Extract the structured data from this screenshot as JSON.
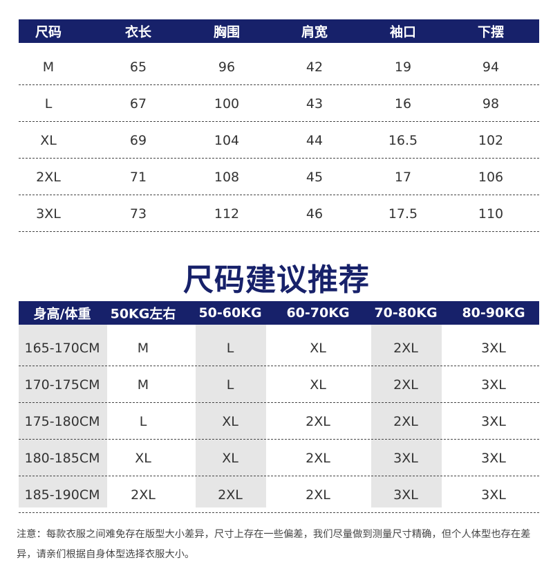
{
  "size_table": {
    "header": [
      "尺码",
      "衣长",
      "胸围",
      "肩宽",
      "袖口",
      "下摆"
    ],
    "rows": [
      [
        "M",
        "65",
        "96",
        "42",
        "19",
        "94"
      ],
      [
        "L",
        "67",
        "100",
        "43",
        "16",
        "98"
      ],
      [
        "XL",
        "69",
        "104",
        "44",
        "16.5",
        "102"
      ],
      [
        "2XL",
        "71",
        "108",
        "45",
        "17",
        "106"
      ],
      [
        "3XL",
        "73",
        "112",
        "46",
        "17.5",
        "110"
      ]
    ]
  },
  "recommend_title": "尺码建议推荐",
  "recommend_table": {
    "header": [
      "身高/体重",
      "50KG左右",
      "50-60KG",
      "60-70KG",
      "70-80KG",
      "80-90KG"
    ],
    "rows": [
      [
        "165-170CM",
        "M",
        "L",
        "XL",
        "2XL",
        "3XL"
      ],
      [
        "170-175CM",
        "M",
        "L",
        "XL",
        "2XL",
        "3XL"
      ],
      [
        "175-180CM",
        "L",
        "XL",
        "2XL",
        "2XL",
        "3XL"
      ],
      [
        "180-185CM",
        "XL",
        "XL",
        "2XL",
        "3XL",
        "3XL"
      ],
      [
        "185-190CM",
        "2XL",
        "2XL",
        "2XL",
        "3XL",
        "3XL"
      ]
    ]
  },
  "note": "注意：每款衣服之间难免存在版型大小差异，尺寸上存在一些偏差，我们尽量做到测量尺寸精确，但个人体型也存在差异，请亲们根据自身体型选择衣服大小。"
}
